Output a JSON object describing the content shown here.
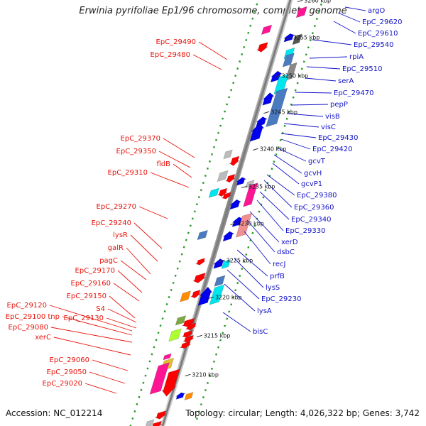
{
  "title": "Erwinia pyrifoliae Ep1/96 chromosome, complete genome",
  "footer": {
    "accession": "Accession: NC_012214",
    "summary": "Topology: circular; Length: 4,026,322 bp; Genes: 3,742"
  },
  "ticks": [
    "3260 kbp",
    "3255 kbp",
    "3250 kbp",
    "3245 kbp",
    "3240 kbp",
    "3235 kbp",
    "3230 kbp",
    "3225 kbp",
    "3220 kbp",
    "3215 kbp",
    "3210 kbp"
  ],
  "labels_left": [
    "EpC_29490",
    "EpC_29480",
    "EpC_29370",
    "EpC_29350",
    "fldB",
    "EpC_29310",
    "EpC_29270",
    "EpC_29240",
    "lysR",
    "galR",
    "pagC",
    "EpC_29170",
    "EpC_29160",
    "EpC_29150",
    "EpC_29120",
    "S4",
    "EpC_29100 tnp",
    "EpC_29130",
    "EpC_29080",
    "xerC",
    "EpC_29060",
    "EpC_29050",
    "EpC_29020"
  ],
  "labels_right": [
    "argO",
    "EpC_29620",
    "EpC_29610",
    "EpC_29540",
    "rpiA",
    "EpC_29510",
    "serA",
    "EpC_29470",
    "pepP",
    "visB",
    "visC",
    "EpC_29430",
    "EpC_29420",
    "gcvT",
    "gcvH",
    "gcvP1",
    "EpC_29380",
    "EpC_29360",
    "EpC_29340",
    "EpC_29330",
    "xerD",
    "dsbC",
    "recJ",
    "prfB",
    "lysS",
    "EpC_29230",
    "lysA",
    "bisC"
  ],
  "colors": {
    "minus_strand": "#ff0000",
    "plus_strand": "#0000ee",
    "label_left": "#e8140c",
    "label_right": "#1414c8",
    "gc_dots": "#2a9a2a",
    "backbone": "#999999",
    "rrna": "#ff1493",
    "trna": "#00e5ee",
    "other": "#bbbbbb"
  }
}
